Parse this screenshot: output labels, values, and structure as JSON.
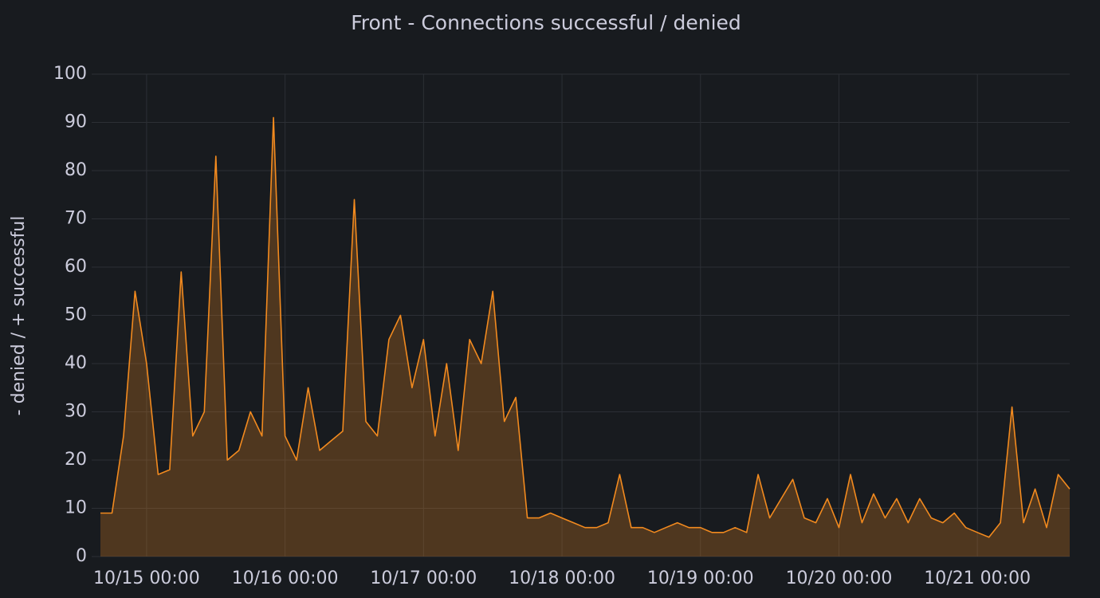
{
  "chart_data": {
    "type": "area",
    "title": "Front - Connections successful / denied",
    "y_label": "- denied / + successful",
    "x": [
      "10/14 16:00",
      "10/14 18:00",
      "10/14 20:00",
      "10/14 22:00",
      "10/15 00:00",
      "10/15 02:00",
      "10/15 04:00",
      "10/15 06:00",
      "10/15 08:00",
      "10/15 10:00",
      "10/15 12:00",
      "10/15 14:00",
      "10/15 16:00",
      "10/15 18:00",
      "10/15 20:00",
      "10/15 22:00",
      "10/16 00:00",
      "10/16 02:00",
      "10/16 04:00",
      "10/16 06:00",
      "10/16 08:00",
      "10/16 10:00",
      "10/16 12:00",
      "10/16 14:00",
      "10/16 16:00",
      "10/16 18:00",
      "10/16 20:00",
      "10/16 22:00",
      "10/17 00:00",
      "10/17 02:00",
      "10/17 04:00",
      "10/17 06:00",
      "10/17 08:00",
      "10/17 10:00",
      "10/17 12:00",
      "10/17 14:00",
      "10/17 16:00",
      "10/17 18:00",
      "10/17 20:00",
      "10/17 22:00",
      "10/18 00:00",
      "10/18 02:00",
      "10/18 04:00",
      "10/18 06:00",
      "10/18 08:00",
      "10/18 10:00",
      "10/18 12:00",
      "10/18 14:00",
      "10/18 16:00",
      "10/18 18:00",
      "10/18 20:00",
      "10/18 22:00",
      "10/19 00:00",
      "10/19 02:00",
      "10/19 04:00",
      "10/19 06:00",
      "10/19 08:00",
      "10/19 10:00",
      "10/19 12:00",
      "10/19 14:00",
      "10/19 16:00",
      "10/19 18:00",
      "10/19 20:00",
      "10/19 22:00",
      "10/20 00:00",
      "10/20 02:00",
      "10/20 04:00",
      "10/20 06:00",
      "10/20 08:00",
      "10/20 10:00",
      "10/20 12:00",
      "10/20 14:00",
      "10/20 16:00",
      "10/20 18:00",
      "10/20 20:00",
      "10/20 22:00",
      "10/21 00:00",
      "10/21 02:00",
      "10/21 04:00",
      "10/21 06:00",
      "10/21 08:00",
      "10/21 10:00",
      "10/21 12:00",
      "10/21 14:00",
      "10/21 16:00"
    ],
    "series": [
      {
        "color": "#f28a1f",
        "values": [
          9,
          9,
          25,
          55,
          40,
          17,
          18,
          59,
          25,
          30,
          83,
          20,
          22,
          30,
          25,
          91,
          25,
          20,
          35,
          22,
          24,
          26,
          74,
          28,
          25,
          45,
          50,
          35,
          45,
          25,
          40,
          22,
          45,
          40,
          55,
          28,
          33,
          8,
          8,
          9,
          8,
          7,
          6,
          6,
          7,
          17,
          6,
          6,
          5,
          6,
          7,
          6,
          6,
          5,
          5,
          6,
          5,
          17,
          8,
          12,
          16,
          8,
          7,
          12,
          6,
          17,
          7,
          13,
          8,
          12,
          7,
          12,
          8,
          7,
          9,
          6,
          5,
          4,
          7,
          31,
          7,
          14,
          6,
          17,
          14
        ]
      }
    ],
    "xlim": [
      "10/14 16:00",
      "10/21 16:00"
    ],
    "xticks": [
      "10/15 00:00",
      "10/16 00:00",
      "10/17 00:00",
      "10/18 00:00",
      "10/19 00:00",
      "10/20 00:00",
      "10/21 00:00"
    ],
    "ylim": [
      0,
      100
    ],
    "yticks": [
      0,
      10,
      20,
      30,
      40,
      50,
      60,
      70,
      80,
      90,
      100
    ],
    "grid": true
  }
}
